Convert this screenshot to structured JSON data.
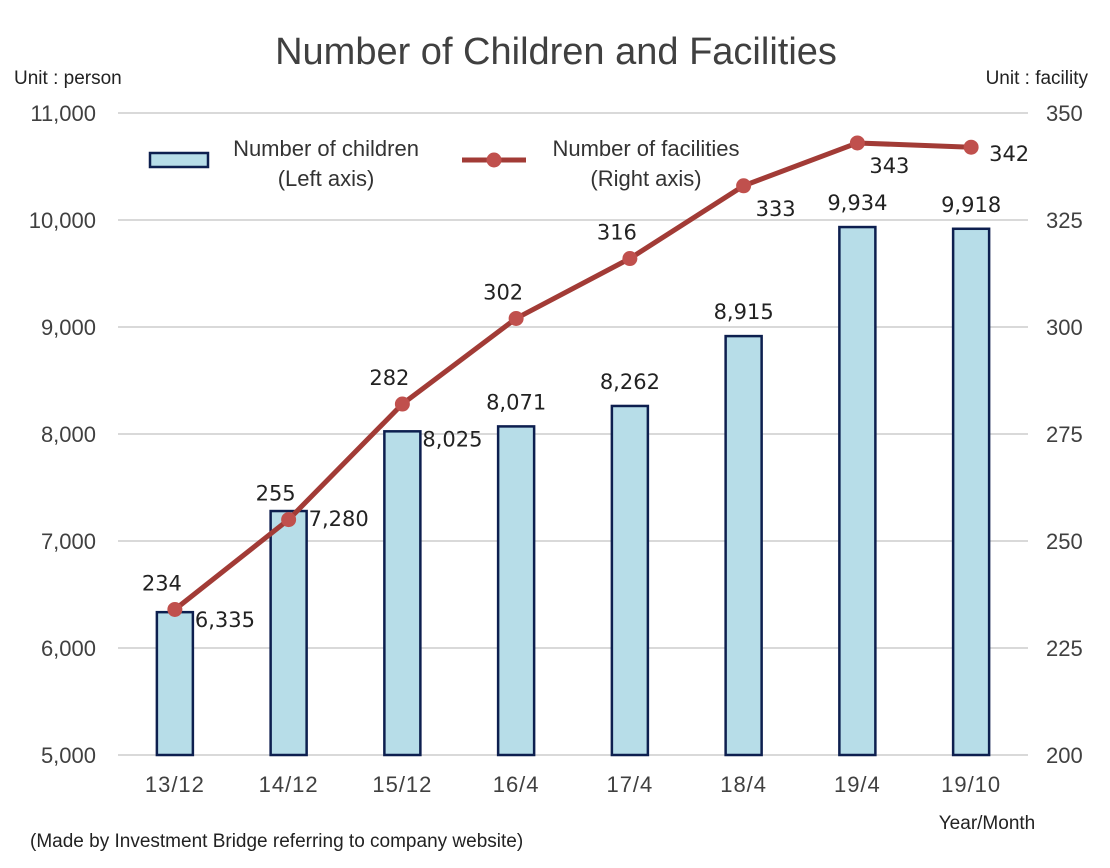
{
  "chart_data": {
    "type": "bar",
    "title": "Number of Children and Facilities",
    "left_unit": "Unit : person",
    "right_unit": "Unit : facility",
    "xlabel": "Year/Month",
    "categories": [
      "13/12",
      "14/12",
      "15/12",
      "16/4",
      "17/4",
      "18/4",
      "19/4",
      "19/10"
    ],
    "y_left": {
      "min": 5000,
      "max": 11000,
      "ticks": [
        "5,000",
        "6,000",
        "7,000",
        "8,000",
        "9,000",
        "10,000",
        "11,000"
      ]
    },
    "y_right": {
      "min": 200,
      "max": 350,
      "ticks": [
        "200",
        "225",
        "250",
        "275",
        "300",
        "325",
        "350"
      ]
    },
    "grid": true,
    "legend_placement": "top-left",
    "series": [
      {
        "name": "Number of children",
        "name_line2": "(Left axis)",
        "type": "bar",
        "axis": "left",
        "color": "#b7dde8",
        "values": [
          6335,
          7280,
          8025,
          8071,
          8262,
          8915,
          9934,
          9918
        ],
        "labels": [
          "6,335",
          "7,280",
          "8,025",
          "8,071",
          "8,262",
          "8,915",
          "9,934",
          "9,918"
        ]
      },
      {
        "name": "Number of facilities",
        "name_line2": "(Right axis)",
        "type": "line",
        "axis": "right",
        "color": "#a23b36",
        "values": [
          234,
          255,
          282,
          302,
          316,
          333,
          343,
          342
        ],
        "labels": [
          "234",
          "255",
          "282",
          "302",
          "316",
          "333",
          "343",
          "342"
        ]
      }
    ],
    "note": "(Made by Investment Bridge referring to company website)"
  }
}
